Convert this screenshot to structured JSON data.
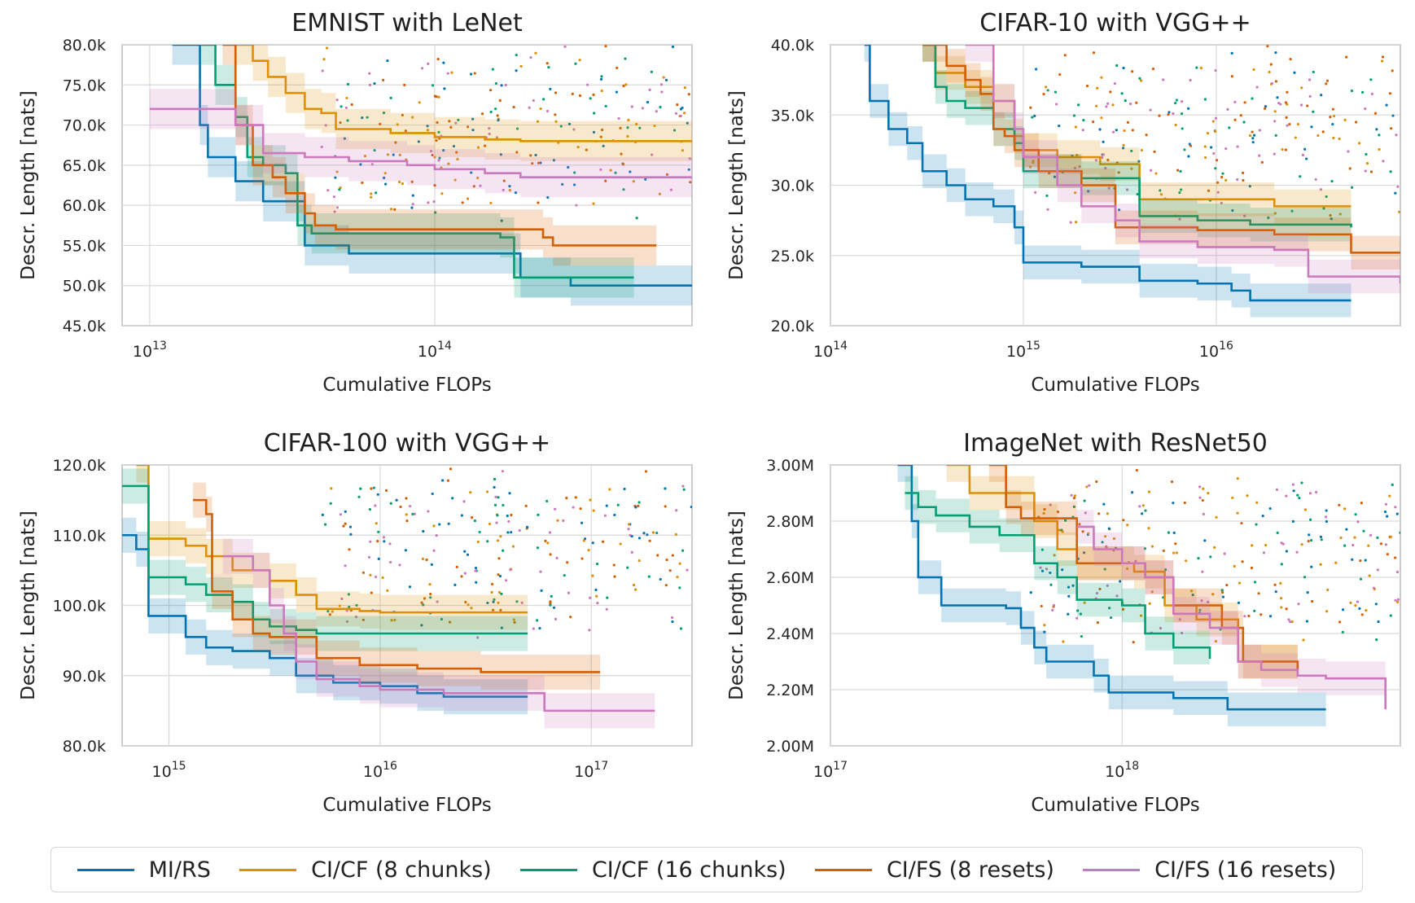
{
  "colors": {
    "mi_rs": "#0173b2",
    "ci_cf_8": "#de8f05",
    "ci_cf_16": "#029e73",
    "ci_fs_8": "#d55e00",
    "ci_fs_16": "#cc78bc"
  },
  "legend": [
    {
      "label": "MI/RS",
      "color_key": "mi_rs"
    },
    {
      "label": "CI/CF (8 chunks)",
      "color_key": "ci_cf_8"
    },
    {
      "label": "CI/CF (16 chunks)",
      "color_key": "ci_cf_16"
    },
    {
      "label": "CI/FS (8 resets)",
      "color_key": "ci_fs_8"
    },
    {
      "label": "CI/FS (16 resets)",
      "color_key": "ci_fs_16"
    }
  ],
  "chart_data": [
    {
      "type": "line",
      "title": "EMNIST with LeNet",
      "xlabel": "Cumulative FLOPs",
      "ylabel": "Descr. Length [nats]",
      "x_scale": "log",
      "xlim": [
        8000000000000.0,
        800000000000000.0
      ],
      "ylim": [
        45000,
        80000
      ],
      "x_ticks": [
        10000000000000.0,
        100000000000000.0
      ],
      "x_tick_labels": [
        {
          "base": "10",
          "exp": "13"
        },
        {
          "base": "10",
          "exp": "14"
        }
      ],
      "y_ticks": [
        45000,
        50000,
        55000,
        60000,
        65000,
        70000,
        75000,
        80000
      ],
      "y_tick_labels": [
        "45.0k",
        "50.0k",
        "55.0k",
        "60.0k",
        "65.0k",
        "70.0k",
        "75.0k",
        "80.0k"
      ],
      "grid": true,
      "band": 2500,
      "series": [
        {
          "name": "MI/RS",
          "color_key": "mi_rs",
          "x": [
            12000000000000.0,
            15000000000000.0,
            16000000000000.0,
            20000000000000.0,
            25000000000000.0,
            30000000000000.0,
            35000000000000.0,
            50000000000000.0,
            100000000000000.0,
            180000000000000.0,
            200000000000000.0,
            300000000000000.0,
            800000000000000.0
          ],
          "y": [
            80000,
            70000,
            66000,
            63000,
            60500,
            60500,
            55000,
            54000,
            54000,
            54000,
            51000,
            50000,
            50000
          ]
        },
        {
          "name": "CI/CF (8 chunks)",
          "color_key": "ci_cf_8",
          "x": [
            20000000000000.0,
            23000000000000.0,
            26000000000000.0,
            30000000000000.0,
            35000000000000.0,
            40000000000000.0,
            45000000000000.0,
            70000000000000.0,
            100000000000000.0,
            150000000000000.0,
            200000000000000.0,
            300000000000000.0,
            800000000000000.0
          ],
          "y": [
            80000,
            78000,
            76000,
            74000,
            72000,
            71500,
            69500,
            69000,
            68500,
            68200,
            68000,
            68000,
            68000
          ]
        },
        {
          "name": "CI/CF (16 chunks)",
          "color_key": "ci_cf_16",
          "x": [
            15000000000000.0,
            17000000000000.0,
            20000000000000.0,
            22000000000000.0,
            25000000000000.0,
            30000000000000.0,
            33000000000000.0,
            37000000000000.0,
            50000000000000.0,
            100000000000000.0,
            170000000000000.0,
            190000000000000.0,
            500000000000000.0
          ],
          "y": [
            80000,
            75000,
            71000,
            66000,
            65000,
            64000,
            57500,
            56500,
            56500,
            56500,
            56000,
            51000,
            51000
          ]
        },
        {
          "name": "CI/FS (8 resets)",
          "color_key": "ci_fs_8",
          "x": [
            18000000000000.0,
            20000000000000.0,
            23000000000000.0,
            27000000000000.0,
            30000000000000.0,
            35000000000000.0,
            38000000000000.0,
            45000000000000.0,
            100000000000000.0,
            240000000000000.0,
            260000000000000.0,
            600000000000000.0
          ],
          "y": [
            80000,
            70000,
            65000,
            63500,
            61500,
            59000,
            57500,
            57000,
            57000,
            56000,
            55000,
            55000
          ]
        },
        {
          "name": "CI/FS (16 resets)",
          "color_key": "ci_fs_16",
          "x": [
            10000000000000.0,
            16000000000000.0,
            20000000000000.0,
            25000000000000.0,
            35000000000000.0,
            50000000000000.0,
            80000000000000.0,
            100000000000000.0,
            150000000000000.0,
            200000000000000.0,
            800000000000000.0
          ],
          "y": [
            72000,
            72000,
            70000,
            66500,
            66000,
            65500,
            65000,
            64500,
            64000,
            63500,
            63300
          ]
        }
      ]
    },
    {
      "type": "line",
      "title": "CIFAR-10 with VGG++",
      "xlabel": "Cumulative FLOPs",
      "ylabel": "Descr. Length [nats]",
      "x_scale": "log",
      "xlim": [
        100000000000000.0,
        9e+16
      ],
      "ylim": [
        20000,
        40000
      ],
      "x_ticks": [
        100000000000000.0,
        1000000000000000.0,
        1e+16
      ],
      "x_tick_labels": [
        {
          "base": "10",
          "exp": "14"
        },
        {
          "base": "10",
          "exp": "15"
        },
        {
          "base": "10",
          "exp": "16"
        }
      ],
      "y_ticks": [
        20000,
        25000,
        30000,
        35000,
        40000
      ],
      "y_tick_labels": [
        "20.0k",
        "25.0k",
        "30.0k",
        "35.0k",
        "40.0k"
      ],
      "grid": true,
      "band": 1200,
      "series": [
        {
          "name": "MI/RS",
          "color_key": "mi_rs",
          "x": [
            150000000000000.0,
            160000000000000.0,
            200000000000000.0,
            250000000000000.0,
            300000000000000.0,
            400000000000000.0,
            500000000000000.0,
            700000000000000.0,
            900000000000000.0,
            1000000000000000.0,
            2000000000000000.0,
            4000000000000000.0,
            8000000000000000.0,
            1.2e+16,
            1.5e+16,
            5e+16
          ],
          "y": [
            40000,
            36000,
            34000,
            33000,
            31000,
            30000,
            29000,
            28500,
            27000,
            24500,
            24200,
            23200,
            23000,
            22500,
            21800,
            21800
          ]
        },
        {
          "name": "CI/CF (8 chunks)",
          "color_key": "ci_cf_8",
          "x": [
            300000000000000.0,
            350000000000000.0,
            500000000000000.0,
            700000000000000.0,
            900000000000000.0,
            1000000000000000.0,
            1500000000000000.0,
            2500000000000000.0,
            4000000000000000.0,
            8000000000000000.0,
            2e+16,
            5e+16
          ],
          "y": [
            40000,
            38000,
            37000,
            36000,
            33500,
            32500,
            32000,
            31500,
            29000,
            29000,
            28500,
            28500
          ]
        },
        {
          "name": "CI/CF (16 chunks)",
          "color_key": "ci_cf_16",
          "x": [
            300000000000000.0,
            350000000000000.0,
            400000000000000.0,
            500000000000000.0,
            700000000000000.0,
            900000000000000.0,
            1000000000000000.0,
            2000000000000000.0,
            4000000000000000.0,
            8000000000000000.0,
            1.5e+16,
            5e+16
          ],
          "y": [
            40000,
            37000,
            36000,
            35500,
            34000,
            33000,
            31000,
            30500,
            27800,
            27500,
            27200,
            27000
          ]
        },
        {
          "name": "CI/FS (8 resets)",
          "color_key": "ci_fs_8",
          "x": [
            300000000000000.0,
            400000000000000.0,
            500000000000000.0,
            600000000000000.0,
            700000000000000.0,
            800000000000000.0,
            900000000000000.0,
            1200000000000000.0,
            2000000000000000.0,
            3000000000000000.0,
            8000000000000000.0,
            2e+16,
            5e+16,
            9e+16
          ],
          "y": [
            40000,
            38500,
            37500,
            36500,
            34000,
            33500,
            32500,
            31000,
            30000,
            27000,
            26800,
            26500,
            25200,
            25200
          ]
        },
        {
          "name": "CI/FS (16 resets)",
          "color_key": "ci_fs_16",
          "x": [
            500000000000000.0,
            700000000000000.0,
            900000000000000.0,
            1000000000000000.0,
            1500000000000000.0,
            2000000000000000.0,
            3000000000000000.0,
            4000000000000000.0,
            8000000000000000.0,
            2e+16,
            3e+16,
            9e+16
          ],
          "y": [
            40000,
            36000,
            34000,
            32000,
            30000,
            28500,
            27500,
            26000,
            25600,
            25400,
            23500,
            23000
          ]
        }
      ]
    },
    {
      "type": "line",
      "title": "CIFAR-100 with VGG++",
      "xlabel": "Cumulative FLOPs",
      "ylabel": "Descr. Length [nats]",
      "x_scale": "log",
      "xlim": [
        600000000000000.0,
        3e+17
      ],
      "ylim": [
        80000,
        120000
      ],
      "x_ticks": [
        1000000000000000.0,
        1e+16,
        1e+17
      ],
      "x_tick_labels": [
        {
          "base": "10",
          "exp": "15"
        },
        {
          "base": "10",
          "exp": "16"
        },
        {
          "base": "10",
          "exp": "17"
        }
      ],
      "y_ticks": [
        80000,
        90000,
        100000,
        110000,
        120000
      ],
      "y_tick_labels": [
        "80.0k",
        "90.0k",
        "100.0k",
        "110.0k",
        "120.0k"
      ],
      "grid": true,
      "band": 2500,
      "series": [
        {
          "name": "MI/RS",
          "color_key": "mi_rs",
          "x": [
            600000000000000.0,
            700000000000000.0,
            800000000000000.0,
            1000000000000000.0,
            1200000000000000.0,
            1500000000000000.0,
            2000000000000000.0,
            3000000000000000.0,
            4000000000000000.0,
            6000000000000000.0,
            1e+16,
            1.5e+16,
            2e+16,
            5e+16
          ],
          "y": [
            110000,
            108000,
            98500,
            98500,
            95500,
            94000,
            93500,
            92500,
            90000,
            89000,
            88500,
            87500,
            87000,
            87000
          ]
        },
        {
          "name": "CI/CF (8 chunks)",
          "color_key": "ci_cf_8",
          "x": [
            700000000000000.0,
            800000000000000.0,
            1200000000000000.0,
            1500000000000000.0,
            2000000000000000.0,
            3000000000000000.0,
            4000000000000000.0,
            5000000000000000.0,
            8000000000000000.0,
            1e+16,
            5e+16
          ],
          "y": [
            120000,
            109500,
            108500,
            107000,
            105000,
            103500,
            101500,
            99500,
            99200,
            99000,
            99000
          ]
        },
        {
          "name": "CI/CF (16 chunks)",
          "color_key": "ci_cf_16",
          "x": [
            600000000000000.0,
            750000000000000.0,
            800000000000000.0,
            1200000000000000.0,
            1500000000000000.0,
            2000000000000000.0,
            2500000000000000.0,
            3000000000000000.0,
            4000000000000000.0,
            5000000000000000.0,
            1e+16,
            5e+16
          ],
          "y": [
            117000,
            117000,
            104000,
            103000,
            101500,
            100500,
            98000,
            97000,
            96500,
            96000,
            96000,
            96000
          ]
        },
        {
          "name": "CI/FS (8 resets)",
          "color_key": "ci_fs_8",
          "x": [
            1300000000000000.0,
            1500000000000000.0,
            1600000000000000.0,
            2000000000000000.0,
            2500000000000000.0,
            3000000000000000.0,
            4000000000000000.0,
            5000000000000000.0,
            8000000000000000.0,
            1.5e+16,
            3e+16,
            1.1e+17
          ],
          "y": [
            115000,
            113000,
            102000,
            98000,
            96000,
            95500,
            95500,
            92500,
            91500,
            91000,
            90500,
            90500
          ]
        },
        {
          "name": "CI/FS (16 resets)",
          "color_key": "ci_fs_16",
          "x": [
            1800000000000000.0,
            2500000000000000.0,
            3000000000000000.0,
            3500000000000000.0,
            4000000000000000.0,
            5000000000000000.0,
            8000000000000000.0,
            1e+16,
            2e+16,
            6e+16,
            2e+17
          ],
          "y": [
            107000,
            105000,
            100000,
            96000,
            92000,
            89500,
            88500,
            88000,
            87500,
            85000,
            85000
          ]
        }
      ]
    },
    {
      "type": "line",
      "title": "ImageNet with ResNet50",
      "xlabel": "Cumulative FLOPs",
      "ylabel": "Descr. Length [nats]",
      "x_scale": "log",
      "xlim": [
        1e+17,
        9e+18
      ],
      "ylim": [
        2000000,
        3000000
      ],
      "x_ticks": [
        1e+17,
        1e+18
      ],
      "x_tick_labels": [
        {
          "base": "10",
          "exp": "17"
        },
        {
          "base": "10",
          "exp": "18"
        }
      ],
      "y_ticks": [
        2000000,
        2200000,
        2400000,
        2600000,
        2800000,
        3000000
      ],
      "y_tick_labels": [
        "2.00M",
        "2.20M",
        "2.40M",
        "2.60M",
        "2.80M",
        "3.00M"
      ],
      "grid": true,
      "band": 60000,
      "series": [
        {
          "name": "MI/RS",
          "color_key": "mi_rs",
          "x": [
            1.7e+17,
            1.9e+17,
            2e+17,
            2.4e+17,
            3e+17,
            4e+17,
            4.5e+17,
            5e+17,
            5.5e+17,
            7e+17,
            8e+17,
            9e+17,
            1.2e+18,
            1.5e+18,
            2.3e+18,
            5e+18
          ],
          "y": [
            3000000,
            2800000,
            2600000,
            2500000,
            2500000,
            2490000,
            2420000,
            2350000,
            2300000,
            2300000,
            2250000,
            2190000,
            2190000,
            2170000,
            2130000,
            2130000
          ]
        },
        {
          "name": "CI/CF (8 chunks)",
          "color_key": "ci_cf_8",
          "x": [
            2.5e+17,
            3e+17,
            3.5e+17,
            5e+17,
            6e+17,
            7e+17,
            9e+17,
            1.1e+18,
            1.4e+18,
            1.8e+18,
            2.5e+18,
            4e+18
          ],
          "y": [
            3000000,
            2900000,
            2900000,
            2800000,
            2700000,
            2650000,
            2650000,
            2620000,
            2500000,
            2450000,
            2300000,
            2270000
          ]
        },
        {
          "name": "CI/CF (16 chunks)",
          "color_key": "ci_cf_16",
          "x": [
            1.8e+17,
            2e+17,
            2.3e+17,
            3e+17,
            3.8e+17,
            5e+17,
            6e+17,
            7e+17,
            1e+18,
            1.2e+18,
            1.5e+18,
            2e+18
          ],
          "y": [
            2900000,
            2850000,
            2820000,
            2780000,
            2750000,
            2650000,
            2600000,
            2520000,
            2500000,
            2400000,
            2350000,
            2310000
          ]
        },
        {
          "name": "CI/FS (8 resets)",
          "color_key": "ci_fs_8",
          "x": [
            3.5e+17,
            4e+17,
            4.5e+17,
            5.5e+17,
            7e+17,
            1e+18,
            1.2e+18,
            1.5e+18,
            1.8e+18,
            2.2e+18,
            2.6e+18,
            3.5e+18,
            4e+18
          ],
          "y": [
            3000000,
            2850000,
            2810000,
            2810000,
            2650000,
            2650000,
            2600000,
            2500000,
            2500000,
            2420000,
            2300000,
            2300000,
            2270000
          ]
        },
        {
          "name": "CI/FS (16 resets)",
          "color_key": "ci_fs_16",
          "x": [
            7e+17,
            8e+17,
            1e+18,
            1.2e+18,
            1.5e+18,
            2e+18,
            2.5e+18,
            3e+18,
            4e+18,
            5e+18,
            7e+18,
            8e+18
          ],
          "y": [
            2780000,
            2700000,
            2650000,
            2600000,
            2470000,
            2420000,
            2300000,
            2270000,
            2250000,
            2240000,
            2240000,
            2130000
          ]
        }
      ]
    }
  ]
}
